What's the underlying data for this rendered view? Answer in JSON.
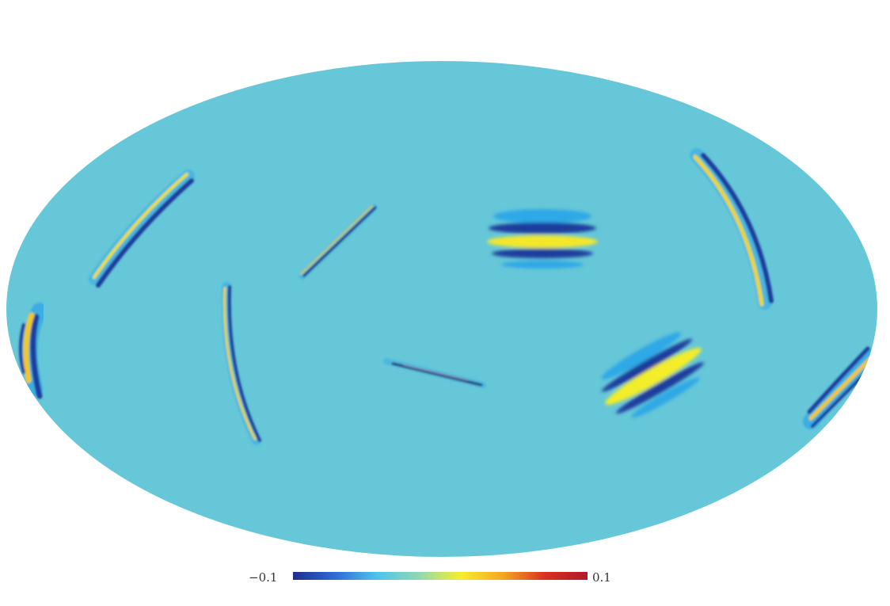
{
  "figure": {
    "projection": "mollweide",
    "background_value_color": "#66c7d8",
    "features": [
      {
        "name": "filament-ridge",
        "kind": "curved-ridge"
      },
      {
        "name": "thin-filament",
        "kind": "thin-line"
      },
      {
        "name": "horizontal-fringe-patch",
        "kind": "fringe"
      },
      {
        "name": "right-arc-ridge",
        "kind": "curved-ridge"
      },
      {
        "name": "left-edge-arc",
        "kind": "curved-ridge"
      },
      {
        "name": "vertical-arc-ridge",
        "kind": "curved-ridge"
      },
      {
        "name": "center-thin-filament",
        "kind": "thin-line"
      },
      {
        "name": "diagonal-fringe-patch",
        "kind": "fringe"
      },
      {
        "name": "right-edge-ridge",
        "kind": "curved-ridge"
      }
    ]
  },
  "colorbar": {
    "min_label": "−0.1",
    "max_label": "0.1",
    "colormap": [
      "#1e2f8c",
      "#2f6bd6",
      "#4fc3ec",
      "#8fd9b0",
      "#f7ee2a",
      "#f5a623",
      "#d7301f",
      "#b2182b"
    ]
  }
}
